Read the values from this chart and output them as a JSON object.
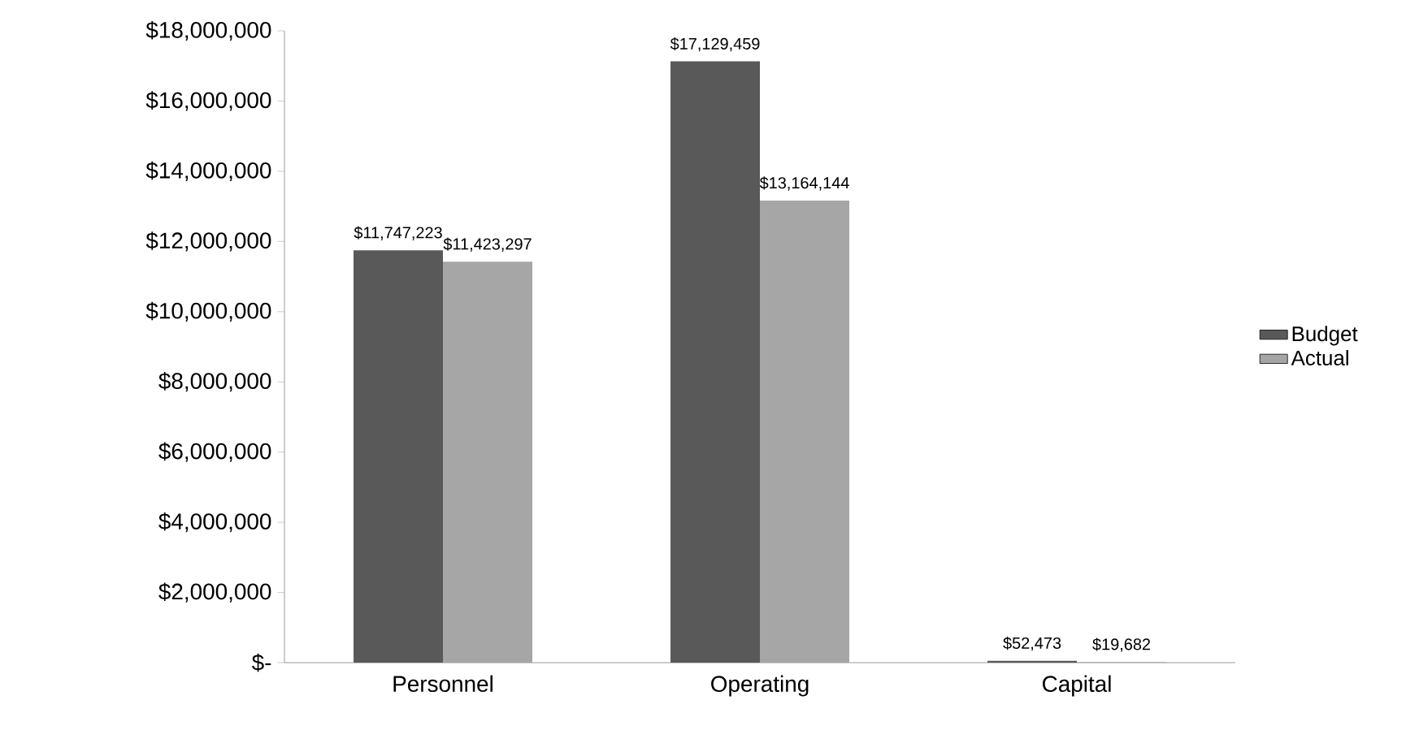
{
  "chart_data": {
    "type": "bar",
    "categories": [
      "Personnel",
      "Operating",
      "Capital"
    ],
    "series": [
      {
        "name": "Budget",
        "color": "#595959",
        "values": [
          11747223,
          17129459,
          52473
        ],
        "value_labels": [
          "$11,747,223",
          "$17,129,459",
          "$52,473"
        ]
      },
      {
        "name": "Actual",
        "color": "#a6a6a6",
        "values": [
          11423297,
          13164144,
          19682
        ],
        "value_labels": [
          "$11,423,297",
          "$13,164,144",
          "$19,682"
        ]
      }
    ],
    "ylim": [
      0,
      18000000
    ],
    "yticks": [
      {
        "value": 0,
        "label": "$-"
      },
      {
        "value": 2000000,
        "label": "$2,000,000"
      },
      {
        "value": 4000000,
        "label": "$4,000,000"
      },
      {
        "value": 6000000,
        "label": "$6,000,000"
      },
      {
        "value": 8000000,
        "label": "$8,000,000"
      },
      {
        "value": 10000000,
        "label": "$10,000,000"
      },
      {
        "value": 12000000,
        "label": "$12,000,000"
      },
      {
        "value": 14000000,
        "label": "$14,000,000"
      },
      {
        "value": 16000000,
        "label": "$16,000,000"
      },
      {
        "value": 18000000,
        "label": "$18,000,000"
      }
    ],
    "grid": false,
    "legend": "right"
  }
}
